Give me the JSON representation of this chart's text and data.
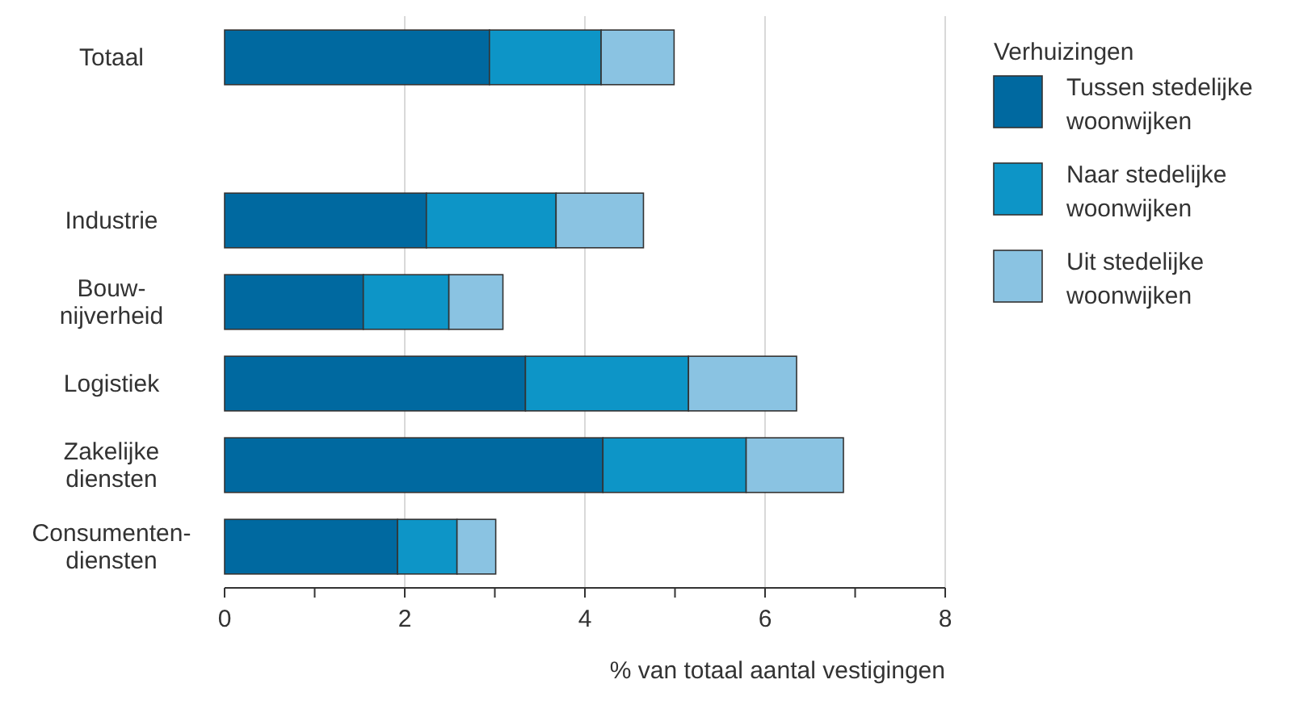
{
  "chart_data": {
    "type": "bar",
    "orientation": "horizontal",
    "stacked": true,
    "xlabel": "% van totaal aantal vestigingen",
    "legend_title": "Verhuizingen",
    "legend": "right",
    "categories": [
      "Totaal",
      null,
      "Industrie",
      "Bouw-nijverheid",
      "Logistiek",
      "Zakelijke diensten",
      "Consumenten-diensten"
    ],
    "series": [
      {
        "name": "Tussen stedelijke woonwijken",
        "color": "#0069a0",
        "values": [
          2.94,
          null,
          2.24,
          1.54,
          3.34,
          4.2,
          1.92
        ]
      },
      {
        "name": "Naar stedelijke woonwijken",
        "color": "#0d95c7",
        "values": [
          1.24,
          null,
          1.44,
          0.95,
          1.81,
          1.59,
          0.66
        ]
      },
      {
        "name": "Uit stedelijke woonwijken",
        "color": "#8ac3e2",
        "values": [
          0.81,
          null,
          0.97,
          0.6,
          1.2,
          1.08,
          0.43
        ]
      }
    ],
    "xlim": [
      0,
      8
    ],
    "xticks": [
      0,
      {
        "value": 1,
        "label": null
      },
      2,
      {
        "value": 3,
        "label": null
      },
      4,
      {
        "value": 5,
        "label": null
      },
      6,
      {
        "value": 7,
        "label": null
      },
      8
    ],
    "grid": "x"
  }
}
